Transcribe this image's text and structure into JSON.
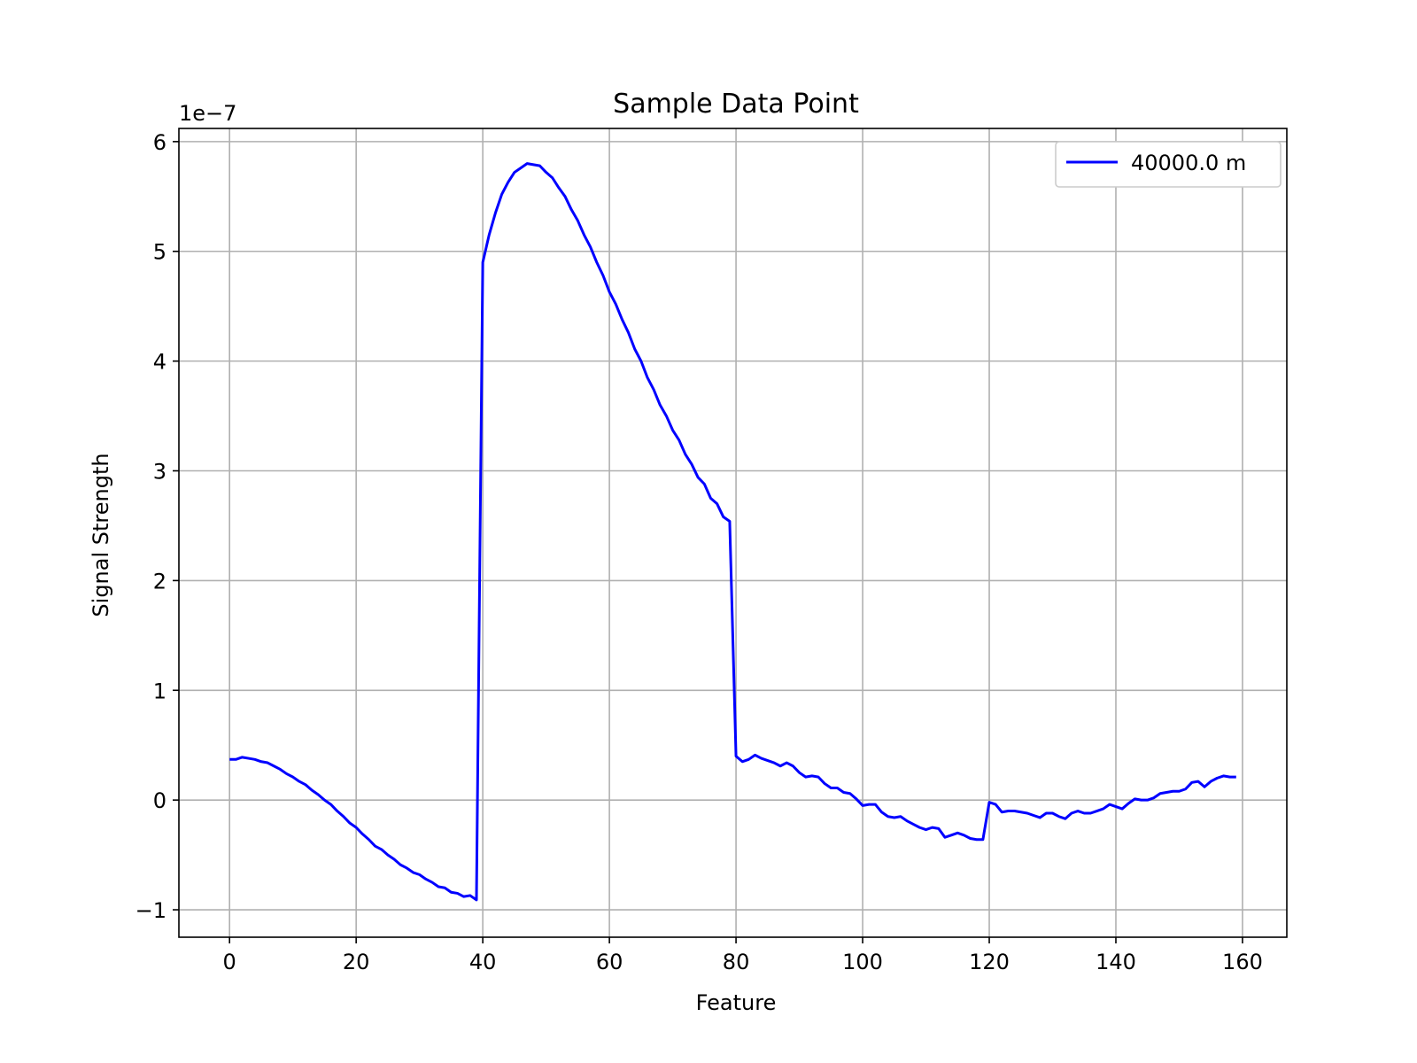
{
  "chart_data": {
    "type": "line",
    "title": "Sample Data Point",
    "xlabel": "Feature",
    "ylabel": "Signal Strength",
    "y_scale_text": "1e−7",
    "xlim": [
      -8,
      167
    ],
    "ylim": [
      -1.25,
      6.12
    ],
    "x_ticks": [
      0,
      20,
      40,
      60,
      80,
      100,
      120,
      140,
      160
    ],
    "y_ticks": [
      -1,
      0,
      1,
      2,
      3,
      4,
      5,
      6
    ],
    "x_tick_labels": [
      "0",
      "20",
      "40",
      "60",
      "80",
      "100",
      "120",
      "140",
      "160"
    ],
    "y_tick_labels": [
      "−1",
      "0",
      "1",
      "2",
      "3",
      "4",
      "5",
      "6"
    ],
    "grid": true,
    "legend": {
      "position": "top-right"
    },
    "series": [
      {
        "name": "40000.0 m",
        "color": "#0000ff",
        "x": [
          0,
          1,
          2,
          3,
          4,
          5,
          6,
          7,
          8,
          9,
          10,
          11,
          12,
          13,
          14,
          15,
          16,
          17,
          18,
          19,
          20,
          21,
          22,
          23,
          24,
          25,
          26,
          27,
          28,
          29,
          30,
          31,
          32,
          33,
          34,
          35,
          36,
          37,
          38,
          39,
          40,
          41,
          42,
          43,
          44,
          45,
          46,
          47,
          48,
          49,
          50,
          51,
          52,
          53,
          54,
          55,
          56,
          57,
          58,
          59,
          60,
          61,
          62,
          63,
          64,
          65,
          66,
          67,
          68,
          69,
          70,
          71,
          72,
          73,
          74,
          75,
          76,
          77,
          78,
          79,
          80,
          81,
          82,
          83,
          84,
          85,
          86,
          87,
          88,
          89,
          90,
          91,
          92,
          93,
          94,
          95,
          96,
          97,
          98,
          99,
          100,
          101,
          102,
          103,
          104,
          105,
          106,
          107,
          108,
          109,
          110,
          111,
          112,
          113,
          114,
          115,
          116,
          117,
          118,
          119,
          120,
          121,
          122,
          123,
          124,
          125,
          126,
          127,
          128,
          129,
          130,
          131,
          132,
          133,
          134,
          135,
          136,
          137,
          138,
          139,
          140,
          141,
          142,
          143,
          144,
          145,
          146,
          147,
          148,
          149,
          150,
          151,
          152,
          153,
          154,
          155,
          156,
          157,
          158,
          159
        ],
        "y": [
          0.37,
          0.37,
          0.39,
          0.38,
          0.37,
          0.35,
          0.34,
          0.31,
          0.28,
          0.24,
          0.21,
          0.17,
          0.14,
          0.09,
          0.05,
          0.0,
          -0.04,
          -0.1,
          -0.15,
          -0.21,
          -0.25,
          -0.31,
          -0.36,
          -0.42,
          -0.45,
          -0.5,
          -0.54,
          -0.59,
          -0.62,
          -0.66,
          -0.68,
          -0.72,
          -0.75,
          -0.79,
          -0.8,
          -0.84,
          -0.85,
          -0.88,
          -0.87,
          -0.91,
          4.9,
          5.15,
          5.35,
          5.52,
          5.63,
          5.72,
          5.76,
          5.8,
          5.79,
          5.78,
          5.72,
          5.67,
          5.58,
          5.5,
          5.38,
          5.28,
          5.15,
          5.04,
          4.9,
          4.78,
          4.63,
          4.52,
          4.38,
          4.26,
          4.11,
          4.0,
          3.85,
          3.74,
          3.6,
          3.5,
          3.37,
          3.28,
          3.15,
          3.06,
          2.94,
          2.88,
          2.75,
          2.7,
          2.58,
          2.54,
          0.4,
          0.35,
          0.37,
          0.41,
          0.38,
          0.36,
          0.34,
          0.31,
          0.34,
          0.31,
          0.25,
          0.21,
          0.22,
          0.21,
          0.15,
          0.11,
          0.11,
          0.07,
          0.06,
          0.01,
          -0.05,
          -0.04,
          -0.04,
          -0.11,
          -0.15,
          -0.16,
          -0.15,
          -0.19,
          -0.22,
          -0.25,
          -0.27,
          -0.25,
          -0.26,
          -0.34,
          -0.32,
          -0.3,
          -0.32,
          -0.35,
          -0.36,
          -0.36,
          -0.02,
          -0.04,
          -0.11,
          -0.1,
          -0.1,
          -0.11,
          -0.12,
          -0.14,
          -0.16,
          -0.12,
          -0.12,
          -0.15,
          -0.17,
          -0.12,
          -0.1,
          -0.12,
          -0.12,
          -0.1,
          -0.08,
          -0.04,
          -0.06,
          -0.08,
          -0.03,
          0.01,
          0.0,
          0.0,
          0.02,
          0.06,
          0.07,
          0.08,
          0.08,
          0.1,
          0.16,
          0.17,
          0.12,
          0.17,
          0.2,
          0.22,
          0.21,
          0.21
        ]
      }
    ]
  }
}
